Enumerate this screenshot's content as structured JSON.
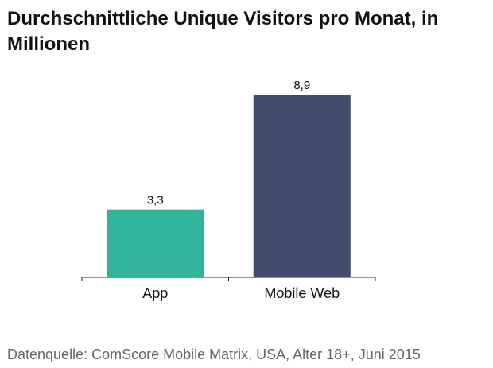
{
  "chart_data": {
    "type": "bar",
    "title": "Durchschnittliche Unique Visitors pro Monat, in Millionen",
    "categories": [
      "App",
      "Mobile Web"
    ],
    "values": [
      3.3,
      8.9
    ],
    "value_labels": [
      "3,3",
      "8,9"
    ],
    "bar_colors": [
      "#33b39b",
      "#414b6b"
    ],
    "xlabel": "",
    "ylabel": "",
    "ylim": [
      0,
      8.9
    ],
    "grid": false,
    "legend": "none"
  },
  "source": "Datenquelle: ComScore Mobile Matrix, USA, Alter 18+, Juni 2015"
}
